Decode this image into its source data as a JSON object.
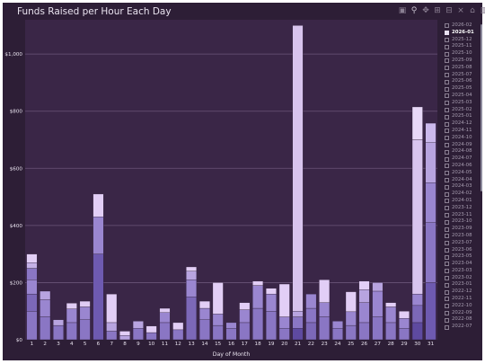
{
  "chart_data": {
    "type": "bar",
    "stacked": true,
    "title": "Funds Raised per Hour Each Day",
    "xlabel": "Day of Month",
    "ylabel": "",
    "ylim": [
      0,
      1120
    ],
    "yticks": [
      0,
      200,
      400,
      600,
      800,
      1000
    ],
    "ytick_labels": [
      "$0",
      "$200",
      "$400",
      "$600",
      "$800",
      "$1,000"
    ],
    "categories": [
      "1",
      "2",
      "3",
      "4",
      "5",
      "6",
      "7",
      "8",
      "9",
      "10",
      "11",
      "12",
      "13",
      "14",
      "15",
      "16",
      "17",
      "18",
      "19",
      "20",
      "21",
      "22",
      "23",
      "24",
      "25",
      "26",
      "27",
      "28",
      "29",
      "30",
      "31"
    ],
    "totals": [
      300,
      170,
      70,
      128,
      135,
      510,
      160,
      30,
      65,
      48,
      110,
      60,
      255,
      135,
      200,
      60,
      130,
      205,
      180,
      195,
      1100,
      160,
      210,
      65,
      168,
      205,
      200,
      130,
      100,
      815,
      758
    ],
    "segments": [
      [
        [
          100,
          "#8a76c4"
        ],
        [
          60,
          "#7c68b8"
        ],
        [
          50,
          "#9a86d0"
        ],
        [
          40,
          "#8a76c4"
        ],
        [
          20,
          "#c4b0e6"
        ],
        [
          30,
          "#e2cef6"
        ]
      ],
      [
        [
          80,
          "#8a76c4"
        ],
        [
          60,
          "#9a86d0"
        ],
        [
          30,
          "#b8a4e0"
        ]
      ],
      [
        [
          50,
          "#8a76c4"
        ],
        [
          20,
          "#b8a4e0"
        ]
      ],
      [
        [
          60,
          "#8a76c4"
        ],
        [
          48,
          "#9a86d0"
        ],
        [
          20,
          "#e0ccf4"
        ]
      ],
      [
        [
          70,
          "#8a76c4"
        ],
        [
          45,
          "#9a86d0"
        ],
        [
          20,
          "#e0ccf4"
        ]
      ],
      [
        [
          300,
          "#6e5ab0"
        ],
        [
          130,
          "#9a86d0"
        ],
        [
          80,
          "#e2cef6"
        ]
      ],
      [
        [
          30,
          "#8a76c4"
        ],
        [
          30,
          "#b8a4e0"
        ],
        [
          100,
          "#e2cef6"
        ]
      ],
      [
        [
          15,
          "#b8a4e0"
        ],
        [
          15,
          "#e2cef6"
        ]
      ],
      [
        [
          40,
          "#8a76c4"
        ],
        [
          25,
          "#b8a4e0"
        ]
      ],
      [
        [
          25,
          "#8a76c4"
        ],
        [
          23,
          "#e2cef6"
        ]
      ],
      [
        [
          60,
          "#8a76c4"
        ],
        [
          35,
          "#9a86d0"
        ],
        [
          15,
          "#e0ccf4"
        ]
      ],
      [
        [
          35,
          "#8a76c4"
        ],
        [
          25,
          "#e2cef6"
        ]
      ],
      [
        [
          150,
          "#7c68b8"
        ],
        [
          60,
          "#9a86d0"
        ],
        [
          30,
          "#b8a4e0"
        ],
        [
          15,
          "#e2cef6"
        ]
      ],
      [
        [
          70,
          "#8a76c4"
        ],
        [
          40,
          "#9a86d0"
        ],
        [
          25,
          "#e2cef6"
        ]
      ],
      [
        [
          50,
          "#8a76c4"
        ],
        [
          40,
          "#9a86d0"
        ],
        [
          110,
          "#e2cef6"
        ]
      ],
      [
        [
          40,
          "#8a76c4"
        ],
        [
          20,
          "#9a86d0"
        ]
      ],
      [
        [
          60,
          "#8a76c4"
        ],
        [
          45,
          "#9a86d0"
        ],
        [
          25,
          "#e2cef6"
        ]
      ],
      [
        [
          110,
          "#8a76c4"
        ],
        [
          80,
          "#9a86d0"
        ],
        [
          15,
          "#e2cef6"
        ]
      ],
      [
        [
          100,
          "#8a76c4"
        ],
        [
          60,
          "#9a86d0"
        ],
        [
          20,
          "#e2cef6"
        ]
      ],
      [
        [
          40,
          "#8a76c4"
        ],
        [
          40,
          "#9a86d0"
        ],
        [
          115,
          "#e2cef6"
        ]
      ],
      [
        [
          40,
          "#5e4aa0"
        ],
        [
          40,
          "#8a76c4"
        ],
        [
          20,
          "#b8a4e0"
        ],
        [
          1000,
          "#d8c4ee"
        ]
      ],
      [
        [
          60,
          "#7c68b8"
        ],
        [
          50,
          "#8a76c4"
        ],
        [
          50,
          "#9a86d0"
        ]
      ],
      [
        [
          80,
          "#8a76c4"
        ],
        [
          50,
          "#9a86d0"
        ],
        [
          80,
          "#e2cef6"
        ]
      ],
      [
        [
          40,
          "#8a76c4"
        ],
        [
          25,
          "#9a86d0"
        ]
      ],
      [
        [
          50,
          "#8a76c4"
        ],
        [
          48,
          "#9a86d0"
        ],
        [
          70,
          "#e2cef6"
        ]
      ],
      [
        [
          60,
          "#8a76c4"
        ],
        [
          70,
          "#9a86d0"
        ],
        [
          45,
          "#b8a4e0"
        ],
        [
          30,
          "#e2cef6"
        ]
      ],
      [
        [
          80,
          "#8a76c4"
        ],
        [
          90,
          "#9a86d0"
        ],
        [
          30,
          "#b8a4e0"
        ]
      ],
      [
        [
          60,
          "#8a76c4"
        ],
        [
          55,
          "#9a86d0"
        ],
        [
          15,
          "#e2cef6"
        ]
      ],
      [
        [
          40,
          "#8a76c4"
        ],
        [
          35,
          "#9a86d0"
        ],
        [
          25,
          "#e2cef6"
        ]
      ],
      [
        [
          60,
          "#5e4aa0"
        ],
        [
          60,
          "#7c68b8"
        ],
        [
          40,
          "#9a86d0"
        ],
        [
          540,
          "#d8c4ee"
        ],
        [
          115,
          "#e8d8f8"
        ]
      ],
      [
        [
          200,
          "#6e5ab0"
        ],
        [
          210,
          "#8a76c4"
        ],
        [
          140,
          "#9a86d0"
        ],
        [
          140,
          "#b8a4e0"
        ],
        [
          68,
          "#cbb8ec"
        ]
      ]
    ],
    "legend": [
      "2026-02",
      "2026-01",
      "2025-12",
      "2025-11",
      "2025-10",
      "2025-09",
      "2025-08",
      "2025-07",
      "2025-06",
      "2025-05",
      "2025-04",
      "2025-03",
      "2025-02",
      "2025-01",
      "2024-12",
      "2024-11",
      "2024-10",
      "2024-09",
      "2024-08",
      "2024-07",
      "2024-06",
      "2024-05",
      "2024-04",
      "2024-03",
      "2024-02",
      "2024-01",
      "2023-12",
      "2023-11",
      "2023-10",
      "2023-09",
      "2023-08",
      "2023-07",
      "2023-06",
      "2023-05",
      "2023-04",
      "2023-03",
      "2023-02",
      "2023-01",
      "2022-12",
      "2022-11",
      "2022-10",
      "2022-09",
      "2022-08",
      "2022-07"
    ],
    "legend_selected": "2026-01",
    "legend_placement": "right",
    "grid": true,
    "colors": {
      "background": "#2d1e36",
      "plot_background": "#3a2647",
      "grid": "#6a5478",
      "text": "#e8e2ee"
    }
  },
  "toolbar": {
    "icons": [
      "camera-icon",
      "zoom-icon",
      "pan-icon",
      "zoom-in-icon",
      "zoom-out-icon",
      "autoscale-icon",
      "reset-axes-icon",
      "plotly-logo-icon"
    ]
  }
}
